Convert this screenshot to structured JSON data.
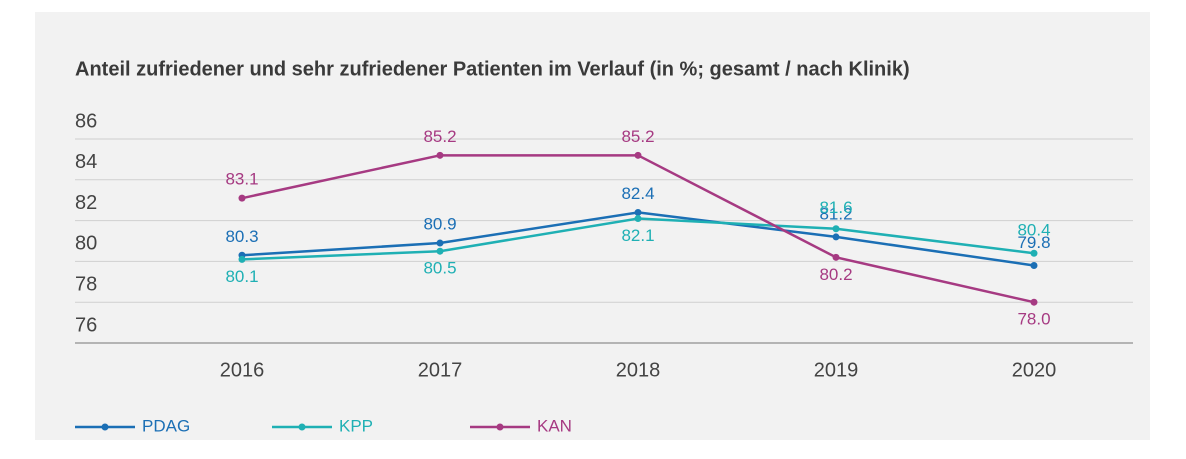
{
  "chart_data": {
    "type": "line",
    "title": "Anteil zufriedener und sehr zufriedener Patienten im Verlauf (in %; gesamt / nach Klinik)",
    "categories": [
      "2016",
      "2017",
      "2018",
      "2019",
      "2020"
    ],
    "series": [
      {
        "name": "PDAG",
        "color": "#1b6fb5",
        "values": [
          80.3,
          80.9,
          82.4,
          81.2,
          79.8
        ]
      },
      {
        "name": "KPP",
        "color": "#1fb0b4",
        "values": [
          80.1,
          80.5,
          82.1,
          81.6,
          80.4
        ]
      },
      {
        "name": "KAN",
        "color": "#a63a82",
        "values": [
          83.1,
          85.2,
          85.2,
          80.2,
          78.0
        ],
        "value_labels": [
          "83.1",
          "85.2",
          "85.2",
          "80.2",
          "78.0"
        ]
      }
    ],
    "ylim": [
      76,
      86
    ],
    "yticks": [
      76,
      78,
      80,
      82,
      84,
      86
    ],
    "grid": true
  }
}
